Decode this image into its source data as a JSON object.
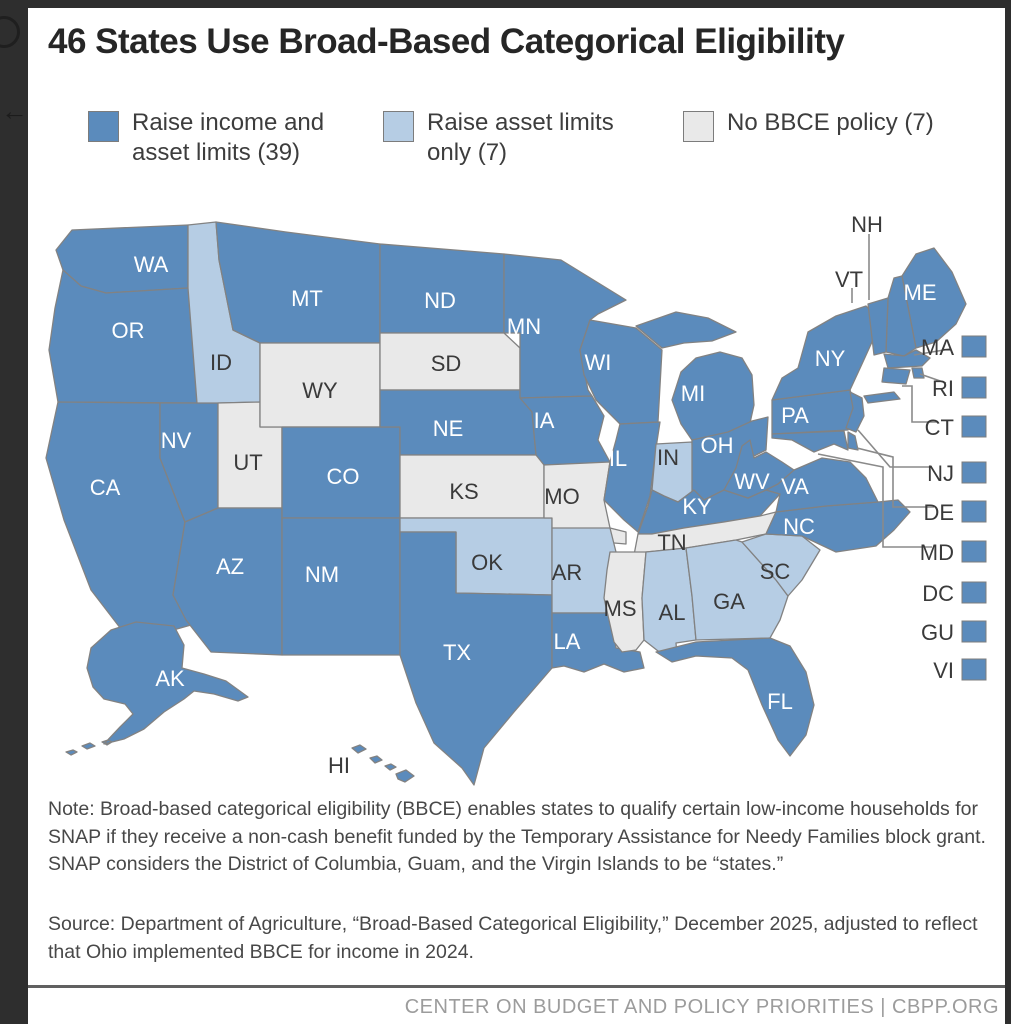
{
  "window": {
    "background_color": "#2e2e2e",
    "icons": {
      "back_glyph": "←"
    }
  },
  "card": {
    "title": "46 States Use Broad-Based Categorical Eligibility",
    "legend": [
      {
        "key": "income_asset",
        "label": "Raise income and\nasset limits (39)",
        "count": 39,
        "color": "#5b8bbc"
      },
      {
        "key": "asset_only",
        "label": "Raise asset limits\nonly (7)",
        "count": 7,
        "color": "#b6cde4"
      },
      {
        "key": "none",
        "label": "No BBCE policy (7)",
        "count": 7,
        "color": "#e9e9e9"
      }
    ],
    "map": {
      "categories": {
        "income_asset": "#5b8bbc",
        "asset_only": "#b6cde4",
        "none": "#e9e9e9"
      },
      "border_color": "#828282",
      "label_colors": {
        "light": "#ffffff",
        "dark": "#3a3a3a"
      },
      "states": [
        {
          "abbr": "WA",
          "category": "income_asset"
        },
        {
          "abbr": "OR",
          "category": "income_asset"
        },
        {
          "abbr": "CA",
          "category": "income_asset"
        },
        {
          "abbr": "NV",
          "category": "income_asset"
        },
        {
          "abbr": "ID",
          "category": "asset_only"
        },
        {
          "abbr": "UT",
          "category": "none"
        },
        {
          "abbr": "AZ",
          "category": "income_asset"
        },
        {
          "abbr": "MT",
          "category": "income_asset"
        },
        {
          "abbr": "WY",
          "category": "none"
        },
        {
          "abbr": "CO",
          "category": "income_asset"
        },
        {
          "abbr": "NM",
          "category": "income_asset"
        },
        {
          "abbr": "ND",
          "category": "income_asset"
        },
        {
          "abbr": "SD",
          "category": "none"
        },
        {
          "abbr": "NE",
          "category": "income_asset"
        },
        {
          "abbr": "KS",
          "category": "none"
        },
        {
          "abbr": "OK",
          "category": "asset_only"
        },
        {
          "abbr": "TX",
          "category": "income_asset"
        },
        {
          "abbr": "MN",
          "category": "income_asset"
        },
        {
          "abbr": "IA",
          "category": "income_asset"
        },
        {
          "abbr": "MO",
          "category": "none"
        },
        {
          "abbr": "AR",
          "category": "asset_only"
        },
        {
          "abbr": "LA",
          "category": "income_asset"
        },
        {
          "abbr": "WI",
          "category": "income_asset"
        },
        {
          "abbr": "IL",
          "category": "income_asset"
        },
        {
          "abbr": "IN",
          "category": "asset_only"
        },
        {
          "abbr": "MI",
          "category": "income_asset"
        },
        {
          "abbr": "OH",
          "category": "income_asset"
        },
        {
          "abbr": "KY",
          "category": "income_asset"
        },
        {
          "abbr": "TN",
          "category": "none"
        },
        {
          "abbr": "MS",
          "category": "none"
        },
        {
          "abbr": "AL",
          "category": "asset_only"
        },
        {
          "abbr": "GA",
          "category": "asset_only"
        },
        {
          "abbr": "SC",
          "category": "asset_only"
        },
        {
          "abbr": "NC",
          "category": "income_asset"
        },
        {
          "abbr": "VA",
          "category": "income_asset"
        },
        {
          "abbr": "WV",
          "category": "income_asset"
        },
        {
          "abbr": "PA",
          "category": "income_asset"
        },
        {
          "abbr": "NY",
          "category": "income_asset"
        },
        {
          "abbr": "FL",
          "category": "income_asset"
        },
        {
          "abbr": "ME",
          "category": "income_asset"
        },
        {
          "abbr": "NH",
          "category": "income_asset"
        },
        {
          "abbr": "VT",
          "category": "income_asset"
        },
        {
          "abbr": "MA",
          "category": "income_asset"
        },
        {
          "abbr": "RI",
          "category": "income_asset"
        },
        {
          "abbr": "CT",
          "category": "income_asset"
        },
        {
          "abbr": "NJ",
          "category": "income_asset"
        },
        {
          "abbr": "DE",
          "category": "income_asset"
        },
        {
          "abbr": "MD",
          "category": "income_asset"
        },
        {
          "abbr": "DC",
          "category": "income_asset"
        },
        {
          "abbr": "GU",
          "category": "income_asset"
        },
        {
          "abbr": "VI",
          "category": "income_asset"
        },
        {
          "abbr": "AK",
          "category": "income_asset"
        },
        {
          "abbr": "HI",
          "category": "income_asset"
        }
      ],
      "callouts": [
        "MA",
        "RI",
        "CT",
        "NJ",
        "DE",
        "MD",
        "DC",
        "GU",
        "VI"
      ]
    },
    "note": "Note: Broad-based categorical eligibility (BBCE) enables states to qualify certain low-income households for SNAP if they receive a non-cash benefit funded by the Temporary Assistance for Needy Families block grant. SNAP considers the District of Columbia, Guam, and the Virgin Islands to be “states.”",
    "source": "Source: Department of Agriculture, “Broad-Based Categorical Eligibility,” December 2025, adjusted to reflect that Ohio implemented BBCE for income in 2024.",
    "footer": "CENTER ON BUDGET AND POLICY PRIORITIES | CBPP.ORG"
  }
}
